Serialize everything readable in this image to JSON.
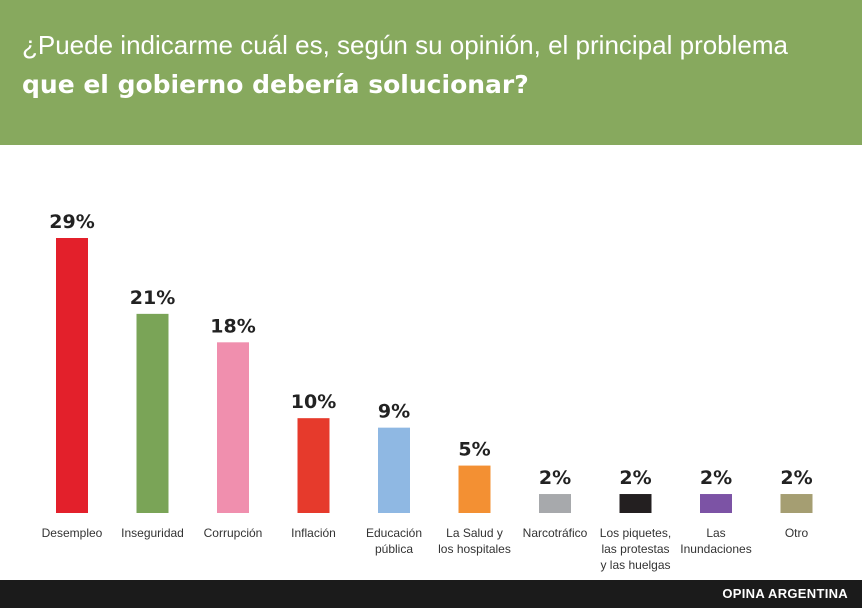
{
  "header": {
    "line1": "¿Puede indicarme cuál es, según su opinión, el principal problema",
    "line2": "que el gobierno debería solucionar?",
    "background": "#87a95e"
  },
  "chart_data": {
    "type": "bar",
    "categories": [
      [
        "Desempleo"
      ],
      [
        "Inseguridad"
      ],
      [
        "Corrupción"
      ],
      [
        "Inflación"
      ],
      [
        "Educación",
        "pública"
      ],
      [
        "La Salud y",
        "los hospitales"
      ],
      [
        "Narcotráfico"
      ],
      [
        "Los piquetes,",
        "las protestas",
        "y las huelgas"
      ],
      [
        "Las",
        "Inundaciones"
      ],
      [
        "Otro"
      ]
    ],
    "values": [
      29,
      21,
      18,
      10,
      9,
      5,
      2,
      2,
      2,
      2
    ],
    "labels": [
      "29%",
      "21%",
      "18%",
      "10%",
      "9%",
      "5%",
      "2%",
      "2%",
      "2%",
      "2%"
    ],
    "colors": [
      "#e3202b",
      "#7aa457",
      "#f08fae",
      "#e63a2c",
      "#8fb8e3",
      "#f39033",
      "#a7a9ac",
      "#231f20",
      "#7c53a5",
      "#a59e72"
    ],
    "ylim": [
      0,
      29
    ],
    "grid": false,
    "legend": "none"
  },
  "footer": {
    "source": "OPINA ARGENTINA"
  }
}
